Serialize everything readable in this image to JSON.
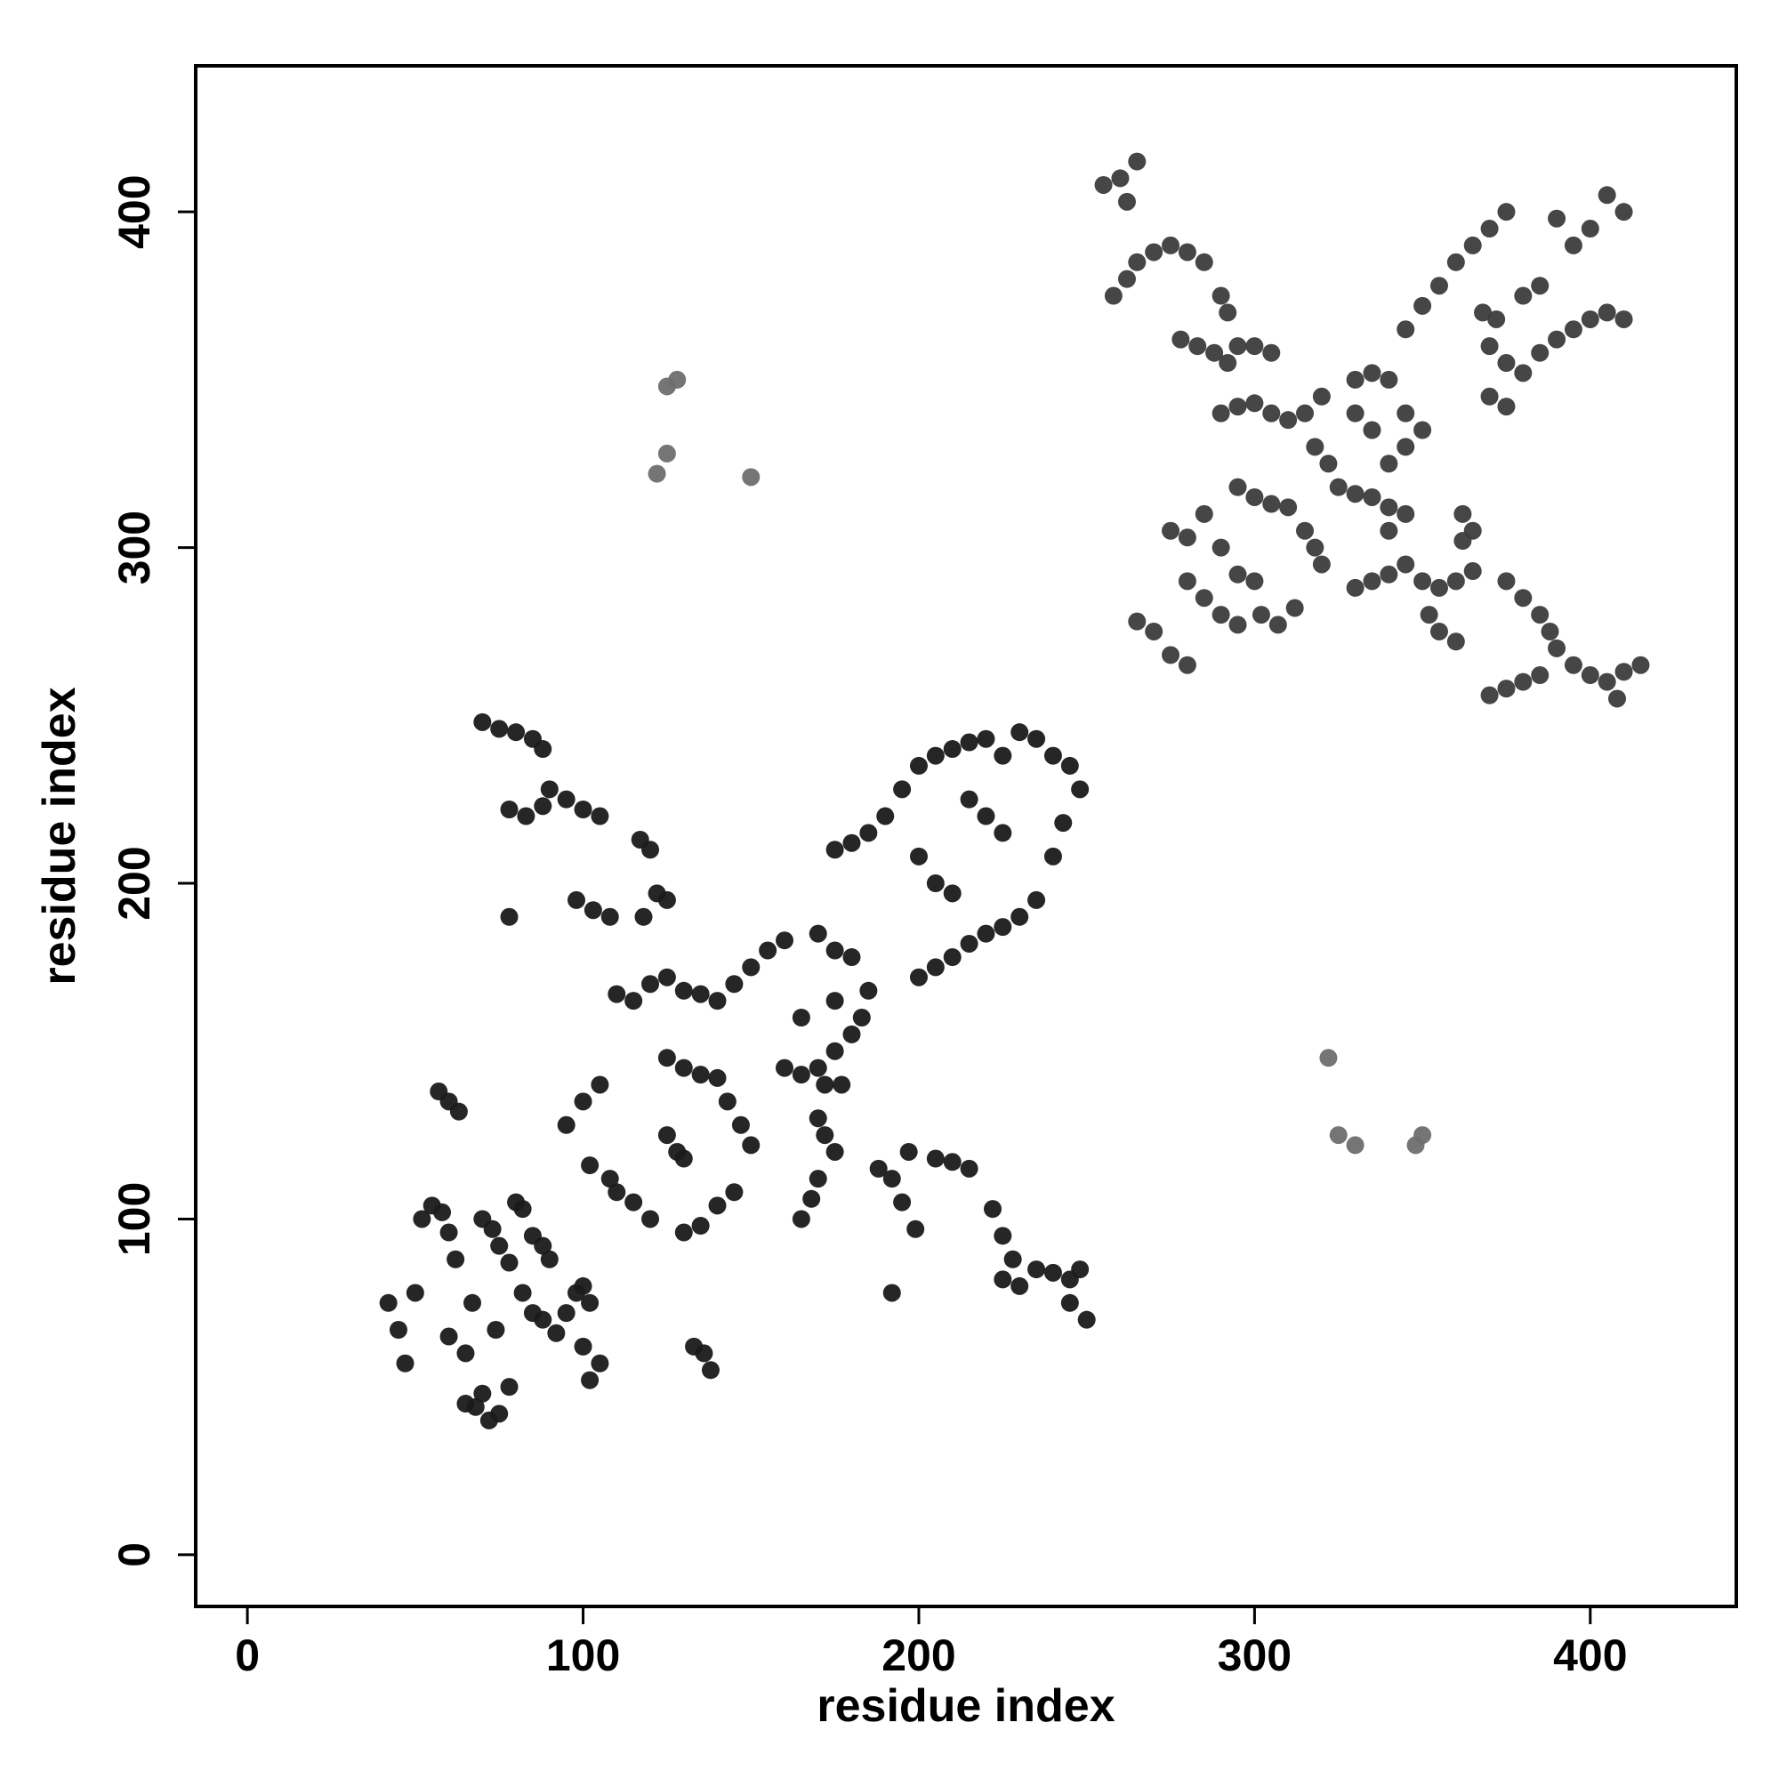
{
  "chart_data": {
    "type": "scatter",
    "x_label": "residue index",
    "y_label": "residue index",
    "xlim": [
      -15.4,
      443.5
    ],
    "ylim": [
      -15.4,
      443.5
    ],
    "xticks": [
      0,
      100,
      200,
      300,
      400
    ],
    "yticks": [
      0,
      100,
      200,
      300,
      400
    ],
    "grid": false,
    "series": [
      {
        "color": "#1a1a1a",
        "x": [
          42,
          45,
          47,
          50,
          52,
          55,
          58,
          60,
          62,
          65,
          68,
          70,
          72,
          75,
          78,
          70,
          73,
          75,
          78,
          80,
          82,
          85,
          88,
          90,
          82,
          85,
          88,
          92,
          95,
          98,
          100,
          102,
          60,
          65,
          67,
          74,
          57,
          60,
          63,
          100,
          105,
          95,
          102,
          108,
          110,
          115,
          120,
          125,
          128,
          130,
          130,
          135,
          140,
          145,
          133,
          136,
          138,
          102,
          105,
          100,
          110,
          115,
          120,
          125,
          130,
          135,
          118,
          122,
          125,
          117,
          120,
          98,
          103,
          108,
          140,
          145,
          150,
          155,
          160,
          143,
          147,
          150,
          125,
          130,
          135,
          140,
          160,
          165,
          170,
          175,
          180,
          183,
          170,
          172,
          175,
          170,
          168,
          165,
          188,
          192,
          197,
          195,
          199,
          205,
          210,
          215,
          222,
          225,
          228,
          225,
          230,
          235,
          240,
          245,
          248,
          250,
          245,
          192,
          70,
          75,
          80,
          85,
          88,
          90,
          95,
          100,
          105,
          78,
          83,
          88,
          78,
          175,
          180,
          185,
          190,
          195,
          200,
          205,
          210,
          215,
          220,
          225,
          230,
          235,
          240,
          245,
          248,
          243,
          240,
          235,
          230,
          225,
          220,
          215,
          210,
          205,
          200,
          205,
          210,
          200,
          215,
          220,
          225,
          170,
          175,
          180,
          165,
          175,
          185,
          177,
          172
        ],
        "y": [
          75,
          67,
          57,
          78,
          100,
          104,
          102,
          96,
          88,
          45,
          44,
          48,
          40,
          42,
          50,
          100,
          97,
          92,
          87,
          105,
          103,
          95,
          92,
          88,
          78,
          72,
          70,
          66,
          72,
          78,
          80,
          75,
          65,
          60,
          75,
          67,
          138,
          135,
          132,
          135,
          140,
          128,
          116,
          112,
          108,
          105,
          100,
          125,
          120,
          118,
          96,
          98,
          104,
          108,
          62,
          60,
          55,
          52,
          57,
          62,
          167,
          165,
          170,
          172,
          168,
          167,
          190,
          197,
          195,
          213,
          210,
          195,
          192,
          190,
          165,
          170,
          175,
          180,
          183,
          135,
          128,
          122,
          148,
          145,
          143,
          142,
          145,
          143,
          145,
          150,
          155,
          160,
          130,
          125,
          120,
          112,
          106,
          100,
          115,
          112,
          120,
          105,
          97,
          118,
          117,
          115,
          103,
          95,
          88,
          82,
          80,
          85,
          84,
          82,
          85,
          70,
          75,
          78,
          248,
          246,
          245,
          243,
          240,
          228,
          225,
          222,
          220,
          222,
          220,
          223,
          190,
          210,
          212,
          215,
          220,
          228,
          235,
          238,
          240,
          242,
          243,
          238,
          245,
          243,
          238,
          235,
          228,
          218,
          208,
          195,
          190,
          187,
          185,
          182,
          178,
          175,
          172,
          200,
          197,
          208,
          225,
          220,
          215,
          185,
          180,
          178,
          160,
          165,
          168,
          140,
          140
        ]
      },
      {
        "color": "#3c3c3c",
        "x": [
          255,
          260,
          265,
          262,
          258,
          262,
          265,
          270,
          275,
          280,
          285,
          290,
          292,
          278,
          283,
          288,
          292,
          295,
          300,
          305,
          290,
          295,
          300,
          305,
          310,
          315,
          320,
          318,
          322,
          330,
          335,
          340,
          330,
          335,
          345,
          350,
          340,
          345,
          335,
          340,
          345,
          325,
          330,
          295,
          300,
          305,
          310,
          315,
          318,
          320,
          275,
          280,
          285,
          290,
          295,
          300,
          280,
          285,
          290,
          295,
          302,
          307,
          312,
          265,
          270,
          275,
          280,
          330,
          335,
          340,
          345,
          340,
          350,
          355,
          360,
          365,
          352,
          355,
          360,
          362,
          375,
          380,
          385,
          388,
          390,
          385,
          380,
          375,
          370,
          395,
          400,
          405,
          410,
          415,
          408,
          345,
          350,
          355,
          360,
          365,
          370,
          375,
          368,
          372,
          370,
          375,
          380,
          385,
          390,
          395,
          400,
          405,
          410,
          380,
          385,
          395,
          400,
          405,
          410,
          390,
          370,
          375,
          362,
          365
        ],
        "y": [
          408,
          410,
          415,
          403,
          375,
          380,
          385,
          388,
          390,
          388,
          385,
          375,
          370,
          362,
          360,
          358,
          355,
          360,
          360,
          358,
          340,
          342,
          343,
          340,
          338,
          340,
          345,
          330,
          325,
          350,
          352,
          350,
          340,
          335,
          340,
          335,
          325,
          330,
          315,
          312,
          310,
          318,
          316,
          318,
          315,
          313,
          312,
          305,
          300,
          295,
          305,
          303,
          310,
          300,
          292,
          290,
          290,
          285,
          280,
          277,
          280,
          277,
          282,
          278,
          275,
          268,
          265,
          288,
          290,
          292,
          295,
          305,
          290,
          288,
          290,
          293,
          280,
          275,
          272,
          302,
          290,
          285,
          280,
          275,
          270,
          262,
          260,
          258,
          256,
          265,
          262,
          260,
          263,
          265,
          255,
          365,
          372,
          378,
          385,
          390,
          395,
          400,
          370,
          368,
          360,
          355,
          352,
          358,
          362,
          365,
          368,
          370,
          368,
          375,
          378,
          390,
          395,
          405,
          400,
          398,
          345,
          342,
          310,
          305
        ]
      },
      {
        "color": "#6e6e6e",
        "x": [
          322,
          325,
          330,
          350,
          348,
          122,
          125,
          125,
          128,
          150
        ],
        "y": [
          148,
          125,
          122,
          125,
          122,
          322,
          328,
          348,
          350,
          321
        ]
      }
    ]
  }
}
